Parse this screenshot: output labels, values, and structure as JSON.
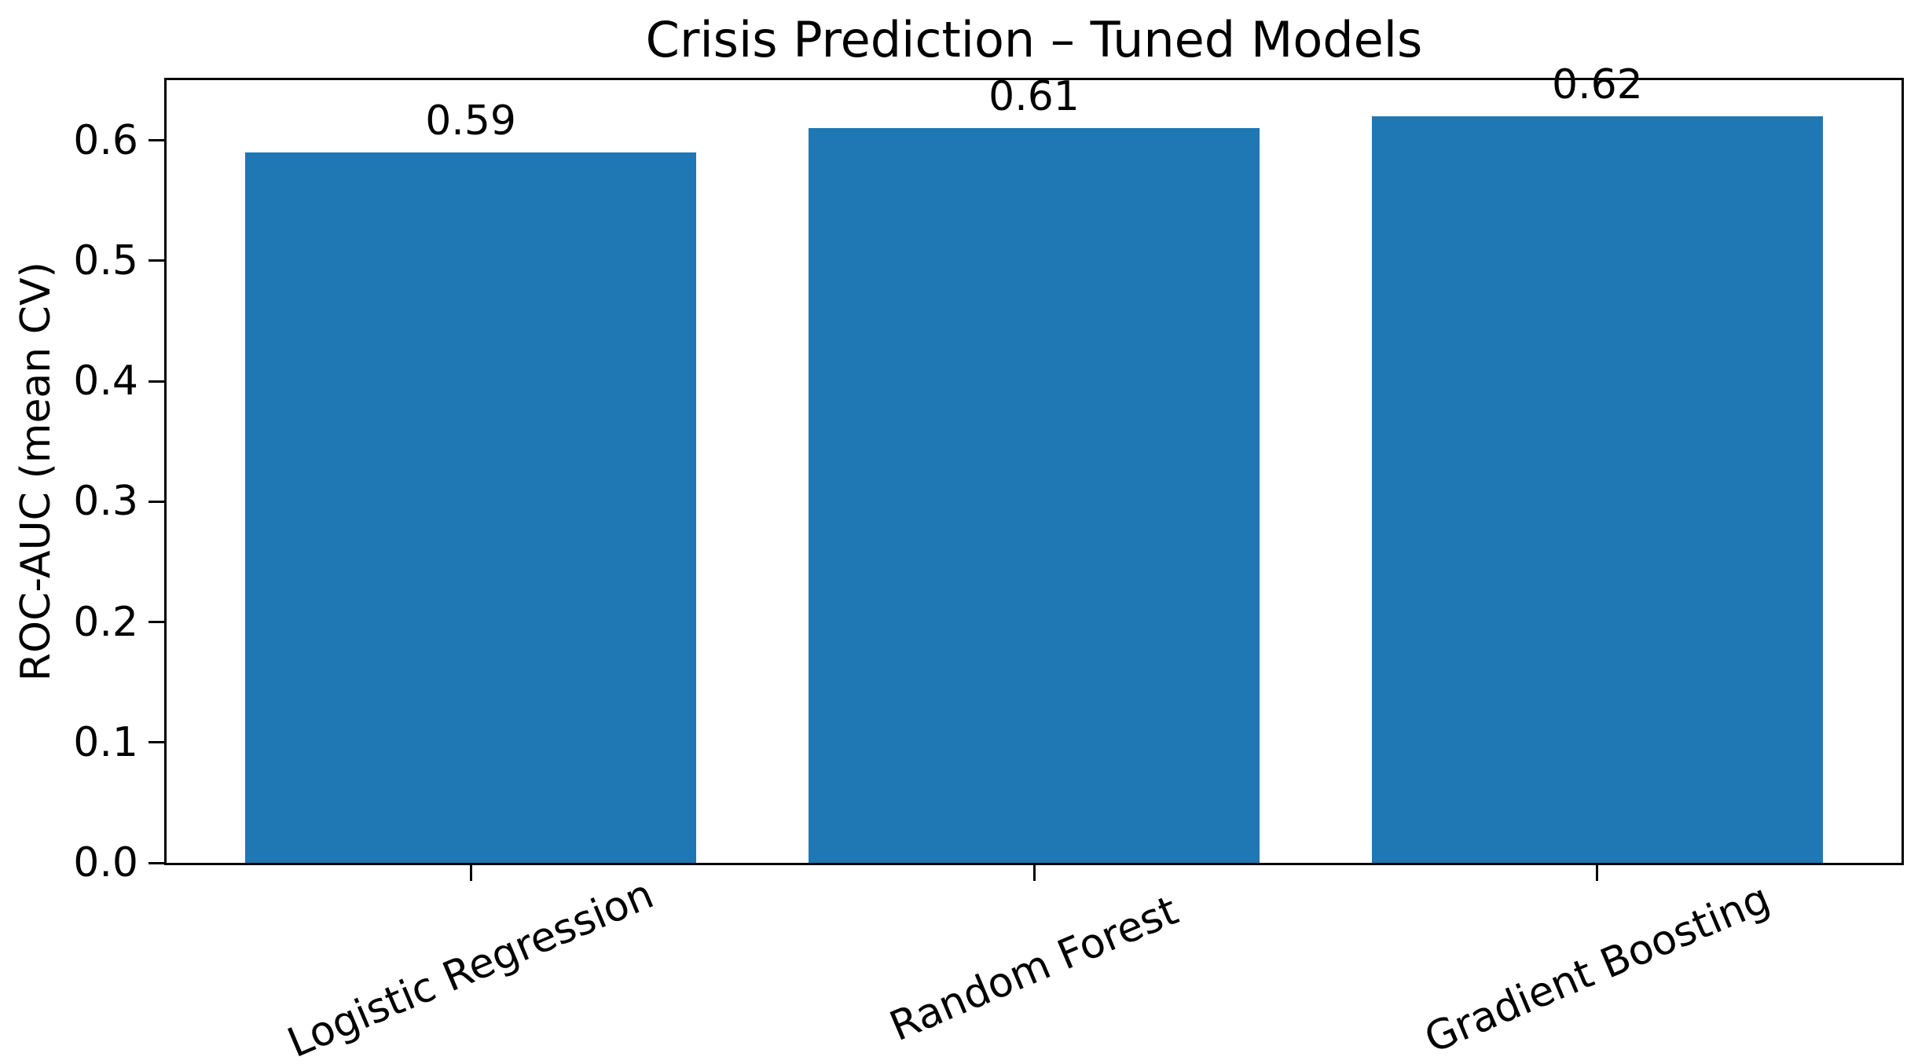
{
  "chart_data": {
    "type": "bar",
    "title": "Crisis Prediction – Tuned Models",
    "ylabel": "ROC-AUC (mean CV)",
    "xlabel": "",
    "categories": [
      "Logistic Regression",
      "Random Forest",
      "Gradient Boosting"
    ],
    "values": [
      0.59,
      0.61,
      0.62
    ],
    "bar_labels": [
      "0.59",
      "0.61",
      "0.62"
    ],
    "ytick_values": [
      0.0,
      0.1,
      0.2,
      0.3,
      0.4,
      0.5,
      0.6
    ],
    "ytick_labels": [
      "0.0",
      "0.1",
      "0.2",
      "0.3",
      "0.4",
      "0.5",
      "0.6"
    ],
    "ylim": [
      0,
      0.65
    ],
    "grid": false,
    "legend_position": "none",
    "bar_color": "#1f77b4",
    "text_color": "#000000",
    "spine_color": "#000000",
    "x_tick_rotation_deg": 23
  }
}
